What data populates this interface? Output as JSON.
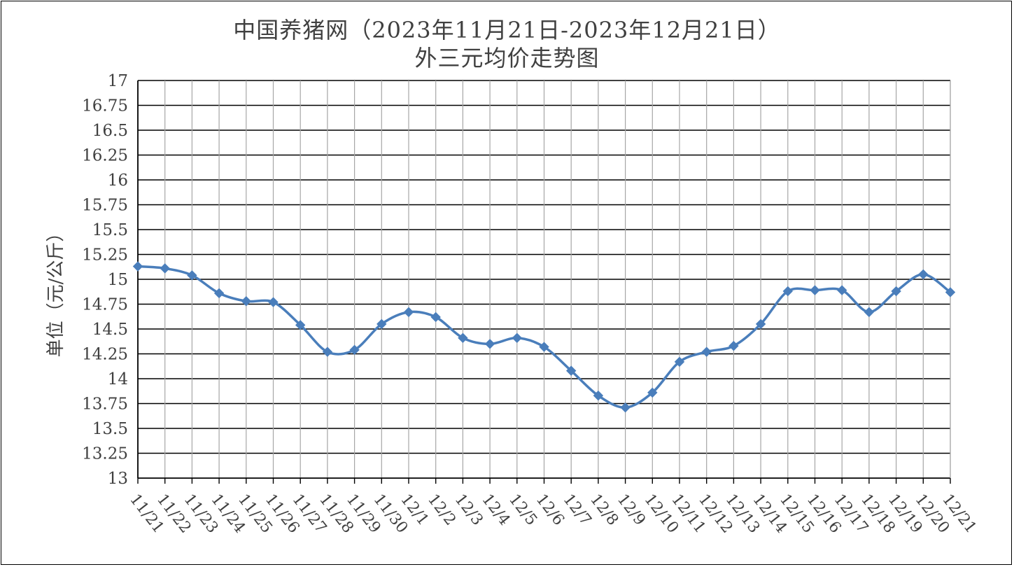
{
  "chart_data": {
    "type": "line",
    "title": "中国养猪网（2023年11月21日-2023年12月21日）",
    "subtitle": "外三元均价走势图",
    "xlabel": "",
    "ylabel": "单位（元/公斤）",
    "ylim": [
      13,
      17
    ],
    "ystep": 0.25,
    "ytick_labels": [
      "13",
      "13.25",
      "13.5",
      "13.75",
      "14",
      "14.25",
      "14.5",
      "14.75",
      "15",
      "15.25",
      "15.5",
      "15.75",
      "16",
      "16.25",
      "16.5",
      "16.75",
      "17"
    ],
    "grid": true,
    "legend": "none",
    "categories": [
      "11/21",
      "11/22",
      "11/23",
      "11/24",
      "11/25",
      "11/26",
      "11/27",
      "11/28",
      "11/29",
      "11/30",
      "12/1",
      "12/2",
      "12/3",
      "12/4",
      "12/5",
      "12/6",
      "12/7",
      "12/8",
      "12/9",
      "12/10",
      "12/11",
      "12/12",
      "12/13",
      "12/14",
      "12/15",
      "12/16",
      "12/17",
      "12/18",
      "12/19",
      "12/20",
      "12/21"
    ],
    "series": [
      {
        "color": "#4a7ebb",
        "values": [
          15.13,
          15.11,
          15.04,
          14.86,
          14.78,
          14.77,
          14.54,
          14.27,
          14.29,
          14.55,
          14.67,
          14.62,
          14.41,
          14.35,
          14.41,
          14.32,
          14.08,
          13.83,
          13.71,
          13.86,
          14.17,
          14.27,
          14.33,
          14.55,
          14.88,
          14.89,
          14.89,
          14.67,
          14.88,
          15.05,
          14.87
        ]
      }
    ]
  }
}
